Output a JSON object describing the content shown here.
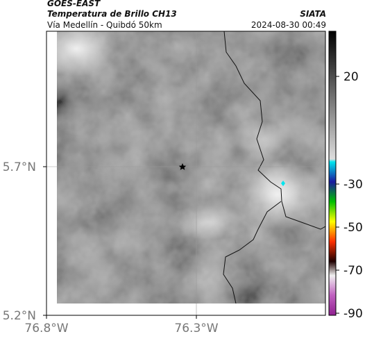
{
  "header": {
    "source": "GOES-EAST",
    "title": "Temperatura de Brillo CH13",
    "org": "SIATA",
    "subtitle": "Vía Medellín - Quibdó 50km",
    "datetime": "2024-08-30 00:49"
  },
  "map": {
    "lon_ticks": [
      {
        "value": -76.8,
        "label": "76.8°W"
      },
      {
        "value": -76.3,
        "label": "76.3°W"
      }
    ],
    "lat_ticks": [
      {
        "value": 5.7,
        "label": "5.7°N"
      },
      {
        "value": 5.2,
        "label": "5.2°N"
      }
    ]
  },
  "colorbar": {
    "ticks": [
      20,
      -30,
      -50,
      -70,
      -90
    ]
  }
}
